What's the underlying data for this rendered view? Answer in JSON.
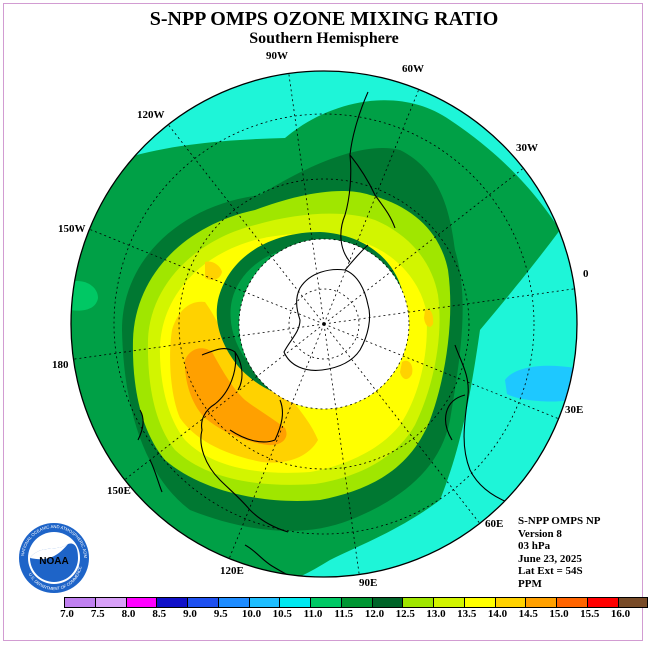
{
  "title": "S-NPP OMPS OZONE MIXING RATIO",
  "subtitle": "Southern Hemisphere",
  "longitude_labels": [
    "90W",
    "60W",
    "120W",
    "30W",
    "150W",
    "0",
    "180",
    "30E",
    "150E",
    "60E",
    "120E",
    "90E"
  ],
  "info": {
    "line1": "S-NPP OMPS NP",
    "line2": "Version 8",
    "line3": "03 hPa",
    "line4": "June 23, 2025",
    "line5": "Lat Ext = 54S",
    "line6": "PPM"
  },
  "logo_text": "NOAA",
  "logo_ring_text": "NATIONAL OCEANIC AND ATMOSPHERIC ADMINISTRATION",
  "logo_ring_text2": "U.S. DEPARTMENT OF COMMERCE",
  "colorbar": {
    "labels": [
      "7.0",
      "7.5",
      "8.0",
      "8.5",
      "9.0",
      "9.5",
      "10.0",
      "10.5",
      "11.0",
      "11.5",
      "12.0",
      "12.5",
      "13.0",
      "13.5",
      "14.0",
      "14.5",
      "15.0",
      "15.5",
      "16.0"
    ],
    "colors": [
      "#c080f0",
      "#d8a0f8",
      "#ff00ff",
      "#1010c8",
      "#1e50f0",
      "#1e8cff",
      "#1ebeff",
      "#00e8f0",
      "#00c864",
      "#009632",
      "#006428",
      "#a0e600",
      "#d2f500",
      "#ffff00",
      "#ffd200",
      "#ffa000",
      "#ff6400",
      "#ff0000",
      "#784b28"
    ]
  },
  "colors": {
    "cyan": "#1ef5d8",
    "light_blue": "#1ec8ff",
    "green": "#00a046",
    "dark_green": "#007832",
    "lime": "#a0e600",
    "yellow_green": "#d2f500",
    "yellow": "#ffff00",
    "gold": "#ffd200",
    "orange": "#ffa000",
    "polar_night": "#ffffff"
  }
}
